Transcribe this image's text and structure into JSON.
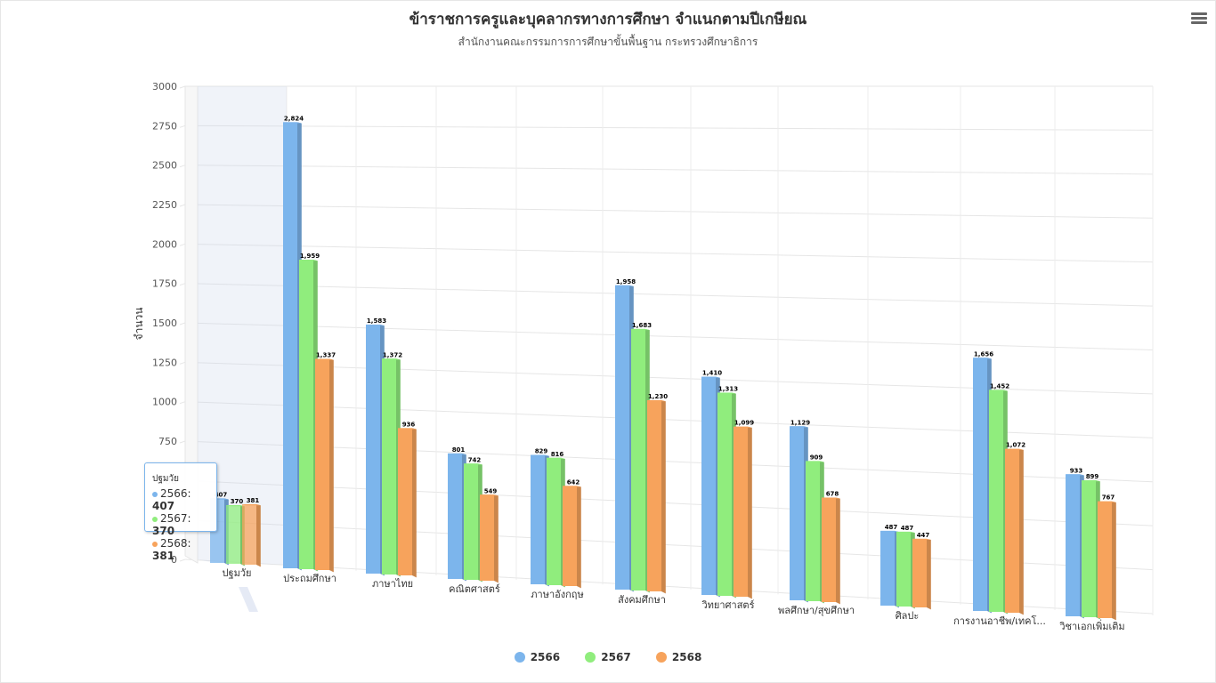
{
  "title": "ข้าราชการครูและบุคลากรทางการศึกษา จำแนกตามปีเกษียณ",
  "subtitle": "สำนักงานคณะกรรมการการศึกษาขั้นพื้นฐาน กระทรวงศึกษาธิการ",
  "menu_icon": "hamburger-menu-icon",
  "tooltip": {
    "category": "ปฐมวัย",
    "rows": [
      {
        "label": "2566: ",
        "value": "407",
        "color": "#7cb5ec"
      },
      {
        "label": "2567: ",
        "value": "370",
        "color": "#90ed7d"
      },
      {
        "label": "2568: ",
        "value": "381",
        "color": "#f7a35c"
      }
    ]
  },
  "chart_data": {
    "type": "bar",
    "title": "ข้าราชการครูและบุคลากรทางการศึกษา จำแนกตามปีเกษียณ",
    "subtitle": "สำนักงานคณะกรรมการการศึกษาขั้นพื้นฐาน กระทรวงศึกษาธิการ",
    "ylabel": "จำนวน",
    "ylim": [
      0,
      3000
    ],
    "yticks": [
      0,
      250,
      500,
      750,
      1000,
      1250,
      1500,
      1750,
      2000,
      2250,
      2500,
      2750,
      3000
    ],
    "categories": [
      "ปฐมวัย",
      "ประถมศึกษา",
      "ภาษาไทย",
      "คณิตศาสตร์",
      "ภาษาอังกฤษ",
      "สังคมศึกษา",
      "วิทยาศาสตร์",
      "พลศึกษา/สุขศึกษา",
      "ศิลปะ",
      "การงานอาชีพ/เทคโ...",
      "วิชาเอกเพิ่มเติม"
    ],
    "series": [
      {
        "name": "2566",
        "color": "#7cb5ec",
        "values": [
          407,
          2824,
          1583,
          801,
          829,
          1958,
          1410,
          1129,
          487,
          1656,
          933
        ]
      },
      {
        "name": "2567",
        "color": "#90ed7d",
        "values": [
          370,
          1959,
          1372,
          742,
          816,
          1683,
          1313,
          909,
          487,
          1452,
          899
        ]
      },
      {
        "name": "2568",
        "color": "#f7a35c",
        "values": [
          381,
          1337,
          936,
          549,
          642,
          1230,
          1099,
          678,
          447,
          1072,
          767
        ]
      }
    ],
    "data_labels": [
      [
        "407",
        "2,824",
        "1,583",
        "801",
        "829",
        "1,958",
        "1,410",
        "1,129",
        "487",
        "1,656",
        "933"
      ],
      [
        "370",
        "1,959",
        "1,372",
        "742",
        "816",
        "1,683",
        "1,313",
        "909",
        "487",
        "1,452",
        "899"
      ],
      [
        "381",
        "1,337",
        "936",
        "549",
        "642",
        "1,230",
        "1,099",
        "678",
        "447",
        "1,072",
        "767"
      ]
    ],
    "highlighted_category": "ปฐมวัย",
    "grid": true,
    "legend": "bottom-center",
    "chart_style": "3d-column"
  }
}
